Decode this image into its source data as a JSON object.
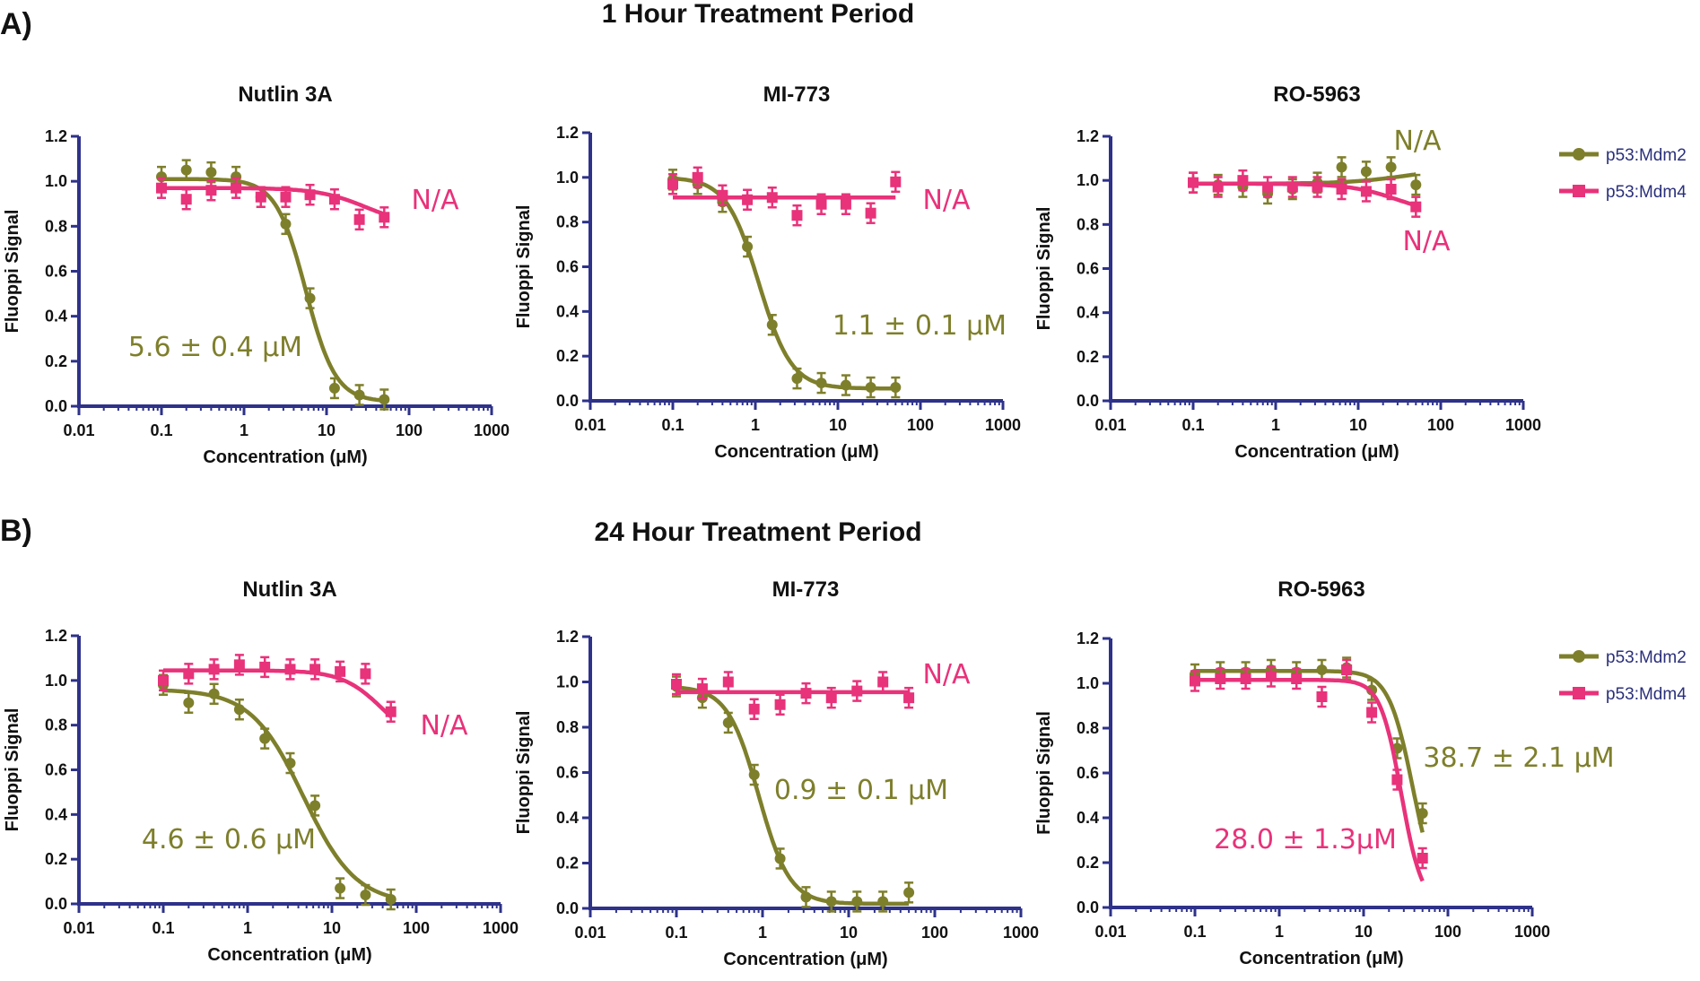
{
  "figure": {
    "rows": [
      {
        "letter": "A)",
        "title": "1 Hour Treatment Period"
      },
      {
        "letter": "B)",
        "title": "24 Hour Treatment Period"
      }
    ],
    "legend": [
      {
        "label": "p53:Mdm2",
        "color": "#7e7f2b",
        "marker": "circle"
      },
      {
        "label": "p53:Mdm4",
        "color": "#e8327a",
        "marker": "square"
      }
    ],
    "colors": {
      "axis": "#2e3289",
      "mdm2": "#7e7f2b",
      "mdm4": "#e8327a"
    }
  },
  "chart_data": [
    {
      "type": "scatter",
      "title": "Nutlin 3A",
      "xlabel": "Concentration (μM)",
      "ylabel": "Fluoppi Signal",
      "xscale": "log",
      "xlim": [
        0.01,
        1000
      ],
      "ylim": [
        0,
        1.2
      ],
      "xticks": [
        "0.01",
        "0.1",
        "1",
        "10",
        "100",
        "1000"
      ],
      "yticks": [
        "0.0",
        "0.2",
        "0.4",
        "0.6",
        "0.8",
        "1.0",
        "1.2"
      ],
      "series": [
        {
          "name": "p53:Mdm2",
          "marker": "circle",
          "points": [
            [
              0.1,
              1.02
            ],
            [
              0.2,
              1.05
            ],
            [
              0.4,
              1.04
            ],
            [
              0.8,
              1.02
            ],
            [
              1.6,
              0.93
            ],
            [
              3.2,
              0.81
            ],
            [
              6.3,
              0.48
            ],
            [
              12.5,
              0.08
            ],
            [
              25,
              0.05
            ],
            [
              50,
              0.03
            ]
          ],
          "fit": {
            "top": 1.01,
            "bottom": 0.02,
            "ec50": 5.6,
            "hill": 2.4
          }
        },
        {
          "name": "p53:Mdm4",
          "marker": "square",
          "points": [
            [
              0.1,
              0.97
            ],
            [
              0.2,
              0.92
            ],
            [
              0.4,
              0.96
            ],
            [
              0.8,
              0.97
            ],
            [
              1.6,
              0.93
            ],
            [
              3.2,
              0.93
            ],
            [
              6.3,
              0.94
            ],
            [
              12.5,
              0.92
            ],
            [
              25,
              0.83
            ],
            [
              50,
              0.84
            ]
          ],
          "fit": {
            "top": 0.97,
            "bottom": 0.8,
            "ec50": 30,
            "hill": 1.5
          }
        }
      ],
      "annotations": [
        {
          "text": "5.6 ± 0.4 μM",
          "series": "p53:Mdm2"
        },
        {
          "text": "N/A",
          "series": "p53:Mdm4"
        }
      ]
    },
    {
      "type": "scatter",
      "title": "MI-773",
      "xlabel": "Concentration (μM)",
      "ylabel": "Fluoppi Signal",
      "xscale": "log",
      "xlim": [
        0.01,
        1000
      ],
      "ylim": [
        0,
        1.2
      ],
      "xticks": [
        "0.01",
        "0.1",
        "1",
        "10",
        "100",
        "1000"
      ],
      "yticks": [
        "0.0",
        "0.2",
        "0.4",
        "0.6",
        "0.8",
        "1.0",
        "1.2"
      ],
      "series": [
        {
          "name": "p53:Mdm2",
          "marker": "circle",
          "points": [
            [
              0.1,
              0.99
            ],
            [
              0.2,
              0.97
            ],
            [
              0.4,
              0.89
            ],
            [
              0.8,
              0.69
            ],
            [
              1.6,
              0.34
            ],
            [
              3.2,
              0.1
            ],
            [
              6.3,
              0.08
            ],
            [
              12.5,
              0.07
            ],
            [
              25,
              0.06
            ],
            [
              50,
              0.06
            ]
          ],
          "fit": {
            "top": 1.0,
            "bottom": 0.055,
            "ec50": 1.1,
            "hill": 2.2
          }
        },
        {
          "name": "p53:Mdm4",
          "marker": "square",
          "points": [
            [
              0.1,
              0.97
            ],
            [
              0.2,
              1.0
            ],
            [
              0.4,
              0.92
            ],
            [
              0.8,
              0.9
            ],
            [
              1.6,
              0.91
            ],
            [
              3.2,
              0.83
            ],
            [
              6.3,
              0.88
            ],
            [
              12.5,
              0.88
            ],
            [
              25,
              0.84
            ],
            [
              50,
              0.98
            ]
          ],
          "fit": {
            "top": 0.91,
            "bottom": 0.91,
            "ec50": 10,
            "hill": 1
          }
        }
      ],
      "annotations": [
        {
          "text": "1.1 ± 0.1 μM",
          "series": "p53:Mdm2"
        },
        {
          "text": "N/A",
          "series": "p53:Mdm4"
        }
      ]
    },
    {
      "type": "scatter",
      "title": "RO-5963",
      "xlabel": "Concentration (μM)",
      "ylabel": "Fluoppi Signal",
      "xscale": "log",
      "xlim": [
        0.01,
        1000
      ],
      "ylim": [
        0,
        1.2
      ],
      "xticks": [
        "0.01",
        "0.1",
        "1",
        "10",
        "100",
        "1000"
      ],
      "yticks": [
        "0.0",
        "0.2",
        "0.4",
        "0.6",
        "0.8",
        "1.0",
        "1.2"
      ],
      "series": [
        {
          "name": "p53:Mdm2",
          "marker": "circle",
          "points": [
            [
              0.1,
              0.99
            ],
            [
              0.2,
              0.98
            ],
            [
              0.4,
              0.97
            ],
            [
              0.8,
              0.94
            ],
            [
              1.6,
              0.96
            ],
            [
              3.2,
              0.99
            ],
            [
              6.3,
              1.06
            ],
            [
              12.5,
              1.04
            ],
            [
              25,
              1.06
            ],
            [
              50,
              0.98
            ]
          ],
          "fit": {
            "top": 0.985,
            "bottom": 1.06,
            "ec50": 40,
            "hill": 1.2
          }
        },
        {
          "name": "p53:Mdm4",
          "marker": "square",
          "points": [
            [
              0.1,
              0.99
            ],
            [
              0.2,
              0.97
            ],
            [
              0.4,
              1.0
            ],
            [
              0.8,
              0.97
            ],
            [
              1.6,
              0.97
            ],
            [
              3.2,
              0.97
            ],
            [
              6.3,
              0.96
            ],
            [
              12.5,
              0.95
            ],
            [
              25,
              0.96
            ],
            [
              50,
              0.88
            ]
          ],
          "fit": {
            "top": 0.985,
            "bottom": 0.84,
            "ec50": 30,
            "hill": 1.5
          }
        }
      ],
      "annotations": [
        {
          "text": "N/A",
          "series": "p53:Mdm2"
        },
        {
          "text": "N/A",
          "series": "p53:Mdm4"
        }
      ]
    },
    {
      "type": "scatter",
      "title": "Nutlin 3A",
      "xlabel": "Concentration (μM)",
      "ylabel": "Fluoppi Signal",
      "xscale": "log",
      "xlim": [
        0.01,
        1000
      ],
      "ylim": [
        0,
        1.2
      ],
      "xticks": [
        "0.01",
        "0.1",
        "1",
        "10",
        "100",
        "1000"
      ],
      "yticks": [
        "0.0",
        "0.2",
        "0.4",
        "0.6",
        "0.8",
        "1.0",
        "1.2"
      ],
      "series": [
        {
          "name": "p53:Mdm2",
          "marker": "circle",
          "points": [
            [
              0.1,
              0.98
            ],
            [
              0.2,
              0.9
            ],
            [
              0.4,
              0.94
            ],
            [
              0.8,
              0.87
            ],
            [
              1.6,
              0.74
            ],
            [
              3.2,
              0.63
            ],
            [
              6.3,
              0.44
            ],
            [
              12.5,
              0.07
            ],
            [
              25,
              0.04
            ],
            [
              50,
              0.02
            ]
          ],
          "fit": {
            "top": 0.96,
            "bottom": 0.0,
            "ec50": 4.6,
            "hill": 1.4
          }
        },
        {
          "name": "p53:Mdm4",
          "marker": "square",
          "points": [
            [
              0.1,
              1.0
            ],
            [
              0.2,
              1.03
            ],
            [
              0.4,
              1.05
            ],
            [
              0.8,
              1.07
            ],
            [
              1.6,
              1.06
            ],
            [
              3.2,
              1.05
            ],
            [
              6.3,
              1.05
            ],
            [
              12.5,
              1.04
            ],
            [
              25,
              1.03
            ],
            [
              50,
              0.86
            ]
          ],
          "fit": {
            "top": 1.045,
            "bottom": 0.7,
            "ec50": 40,
            "hill": 1.8
          }
        }
      ],
      "annotations": [
        {
          "text": "4.6 ± 0.6 μM",
          "series": "p53:Mdm2"
        },
        {
          "text": "N/A",
          "series": "p53:Mdm4"
        }
      ]
    },
    {
      "type": "scatter",
      "title": "MI-773",
      "xlabel": "Concentration (μM)",
      "ylabel": "Fluoppi Signal",
      "xscale": "log",
      "xlim": [
        0.01,
        1000
      ],
      "ylim": [
        0,
        1.2
      ],
      "xticks": [
        "0.01",
        "0.1",
        "1",
        "10",
        "100",
        "1000"
      ],
      "yticks": [
        "0.0",
        "0.2",
        "0.4",
        "0.6",
        "0.8",
        "1.0",
        "1.2"
      ],
      "series": [
        {
          "name": "p53:Mdm2",
          "marker": "circle",
          "points": [
            [
              0.1,
              0.98
            ],
            [
              0.2,
              0.93
            ],
            [
              0.4,
              0.82
            ],
            [
              0.8,
              0.59
            ],
            [
              1.6,
              0.22
            ],
            [
              3.2,
              0.05
            ],
            [
              6.3,
              0.03
            ],
            [
              12.5,
              0.03
            ],
            [
              25,
              0.03
            ],
            [
              50,
              0.07
            ]
          ],
          "fit": {
            "top": 0.98,
            "bottom": 0.02,
            "ec50": 0.9,
            "hill": 2.4
          }
        },
        {
          "name": "p53:Mdm4",
          "marker": "square",
          "points": [
            [
              0.1,
              0.99
            ],
            [
              0.2,
              0.97
            ],
            [
              0.4,
              1.0
            ],
            [
              0.8,
              0.88
            ],
            [
              1.6,
              0.9
            ],
            [
              3.2,
              0.95
            ],
            [
              6.3,
              0.93
            ],
            [
              12.5,
              0.96
            ],
            [
              25,
              1.0
            ],
            [
              50,
              0.93
            ]
          ],
          "fit": {
            "top": 0.955,
            "bottom": 0.955,
            "ec50": 10,
            "hill": 1
          }
        }
      ],
      "annotations": [
        {
          "text": "0.9 ± 0.1 μM",
          "series": "p53:Mdm2"
        },
        {
          "text": "N/A",
          "series": "p53:Mdm4"
        }
      ]
    },
    {
      "type": "scatter",
      "title": "RO-5963",
      "xlabel": "Concentration (μM)",
      "ylabel": "Fluoppi Signal",
      "xscale": "log",
      "xlim": [
        0.01,
        1000
      ],
      "ylim": [
        0,
        1.2
      ],
      "xticks": [
        "0.01",
        "0.1",
        "1",
        "10",
        "100",
        "1000"
      ],
      "yticks": [
        "0.0",
        "0.2",
        "0.4",
        "0.6",
        "0.8",
        "1.0",
        "1.2"
      ],
      "series": [
        {
          "name": "p53:Mdm2",
          "marker": "circle",
          "points": [
            [
              0.1,
              1.04
            ],
            [
              0.2,
              1.05
            ],
            [
              0.4,
              1.05
            ],
            [
              0.8,
              1.06
            ],
            [
              1.6,
              1.05
            ],
            [
              3.2,
              1.06
            ],
            [
              6.3,
              1.07
            ],
            [
              12.5,
              0.97
            ],
            [
              25,
              0.71
            ],
            [
              50,
              0.42
            ]
          ],
          "fit": {
            "top": 1.055,
            "bottom": 0.0,
            "ec50": 38.7,
            "hill": 3.0
          }
        },
        {
          "name": "p53:Mdm4",
          "marker": "square",
          "points": [
            [
              0.1,
              1.01
            ],
            [
              0.2,
              1.02
            ],
            [
              0.4,
              1.02
            ],
            [
              0.8,
              1.03
            ],
            [
              1.6,
              1.02
            ],
            [
              3.2,
              0.94
            ],
            [
              6.3,
              1.06
            ],
            [
              12.5,
              0.87
            ],
            [
              25,
              0.57
            ],
            [
              50,
              0.22
            ]
          ],
          "fit": {
            "top": 1.015,
            "bottom": 0.0,
            "ec50": 28.0,
            "hill": 3.5
          }
        }
      ],
      "annotations": [
        {
          "text": "38.7 ± 2.1 μM",
          "series": "p53:Mdm2"
        },
        {
          "text": "28.0 ± 1.3μM",
          "series": "p53:Mdm4"
        }
      ]
    }
  ]
}
